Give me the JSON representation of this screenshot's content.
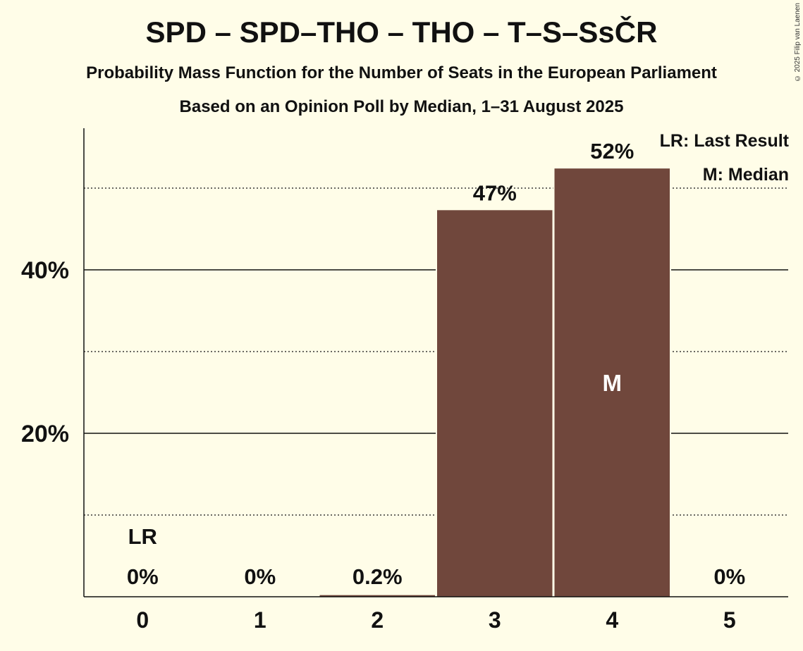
{
  "header": {
    "title": "SPD – SPD–THO – THO – T–S–SsČR",
    "subtitle": "Probability Mass Function for the Number of Seats in the European Parliament",
    "subtitle2": "Based on an Opinion Poll by Median, 1–31 August 2025",
    "copyright": "© 2025 Filip van Laenen"
  },
  "legend": {
    "lr": "LR: Last Result",
    "median": "M: Median"
  },
  "colors": {
    "background": "#FFFDE8",
    "bar": "#70473C",
    "text": "#111111"
  },
  "chart_data": {
    "type": "bar",
    "categories": [
      "0",
      "1",
      "2",
      "3",
      "4",
      "5"
    ],
    "values": [
      0,
      0,
      0.2,
      47.3,
      52.4,
      0
    ],
    "labels": [
      "0%",
      "0%",
      "0.2%",
      "47%",
      "52%",
      "0%"
    ],
    "ylim": [
      0,
      57
    ],
    "yticks": [
      20,
      40
    ],
    "ytick_labels": [
      "20%",
      "40%"
    ],
    "dotted_gridlines": [
      10,
      30,
      50
    ],
    "last_result_category": "0",
    "last_result_label": "LR",
    "median_category": "4",
    "median_label": "M"
  }
}
